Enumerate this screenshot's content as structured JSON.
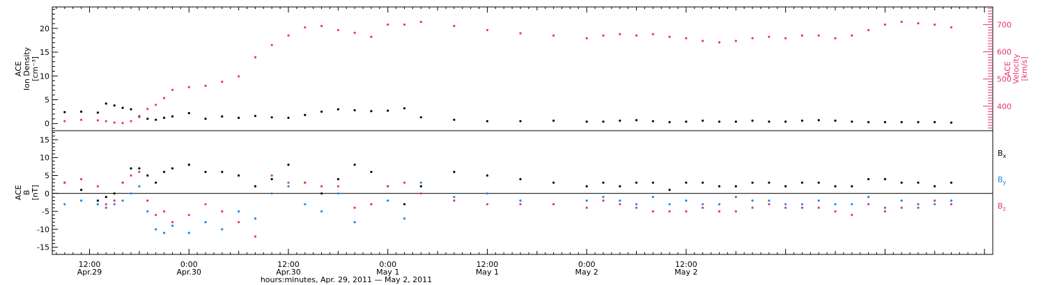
{
  "colors": {
    "axis": "#000000",
    "density": "#000000",
    "velocity": "#e8336b",
    "bx": "#000000",
    "by": "#1e88e5",
    "bz": "#e8336b"
  },
  "chart_data": [
    {
      "type": "scatter",
      "panel": "ion density / velocity",
      "ylabel_left": [
        "ACE",
        "Ion Density",
        "[cm⁻³]"
      ],
      "ylabel_right": [
        "ACE",
        "Velocity",
        "[km/s]"
      ],
      "ylim_left": [
        -1.5,
        24.5
      ],
      "ylim_right": [
        310,
        765
      ],
      "yticks_left": [
        "0",
        "5",
        "10",
        "15",
        "20"
      ],
      "yticks_right": [
        "400",
        "500",
        "600",
        "700"
      ],
      "series": [
        {
          "name": "Ion Density",
          "axis": "left",
          "x": [
            -3,
            -1,
            1,
            2,
            3,
            4,
            5,
            6,
            7,
            8,
            9,
            10,
            12,
            14,
            16,
            18,
            20,
            22,
            24,
            26,
            28,
            30,
            32,
            34,
            36,
            38,
            40,
            44,
            48,
            52,
            56,
            60,
            62,
            64,
            66,
            68,
            70,
            72,
            74,
            76,
            78,
            80,
            82,
            84,
            86,
            88,
            90,
            92,
            94,
            96,
            98,
            100,
            102,
            104
          ],
          "y": [
            2.4,
            2.5,
            2.3,
            4.2,
            3.8,
            3.3,
            3.0,
            1.5,
            1.0,
            0.8,
            1.2,
            1.5,
            2.2,
            1.0,
            1.5,
            1.2,
            1.6,
            1.3,
            1.2,
            1.8,
            2.5,
            3.0,
            2.8,
            2.6,
            2.7,
            3.2,
            1.3,
            0.8,
            0.5,
            0.5,
            0.6,
            0.4,
            0.4,
            0.6,
            0.7,
            0.5,
            0.3,
            0.4,
            0.6,
            0.4,
            0.4,
            0.6,
            0.4,
            0.4,
            0.6,
            0.7,
            0.6,
            0.4,
            0.3,
            0.3,
            0.3,
            0.3,
            0.3,
            0.2
          ]
        },
        {
          "name": "Velocity",
          "axis": "right",
          "x": [
            -3,
            -1,
            1,
            2,
            3,
            4,
            5,
            6,
            7,
            8,
            9,
            10,
            12,
            14,
            16,
            18,
            20,
            22,
            24,
            26,
            28,
            30,
            32,
            34,
            36,
            38,
            40,
            44,
            48,
            52,
            56,
            60,
            62,
            64,
            66,
            68,
            70,
            72,
            74,
            76,
            78,
            80,
            82,
            84,
            86,
            88,
            90,
            92,
            94,
            96,
            98,
            100,
            102,
            104
          ],
          "y": [
            345,
            350,
            348,
            345,
            340,
            338,
            345,
            360,
            390,
            405,
            430,
            460,
            470,
            475,
            490,
            510,
            580,
            625,
            660,
            690,
            695,
            680,
            670,
            655,
            700,
            700,
            710,
            695,
            680,
            668,
            660,
            650,
            660,
            665,
            660,
            665,
            655,
            650,
            640,
            635,
            640,
            650,
            655,
            650,
            660,
            660,
            650,
            660,
            680,
            700,
            710,
            705,
            700,
            690
          ]
        }
      ]
    },
    {
      "type": "scatter",
      "panel": "magnetic field",
      "ylabel_left": [
        "ACE",
        "B",
        "[nT]"
      ],
      "ylim": [
        -17,
        17.5
      ],
      "yticks": [
        "-15",
        "-10",
        "-5",
        "0",
        "5",
        "10",
        "15"
      ],
      "legend_position": "right",
      "series": [
        {
          "name": "Bx",
          "label_main": "B",
          "label_sub": "x",
          "x": [
            -3,
            -1,
            1,
            2,
            3,
            4,
            5,
            6,
            7,
            8,
            9,
            10,
            12,
            14,
            16,
            18,
            20,
            22,
            24,
            26,
            28,
            30,
            32,
            34,
            36,
            38,
            40,
            44,
            48,
            52,
            56,
            60,
            62,
            64,
            66,
            68,
            70,
            72,
            74,
            76,
            78,
            80,
            82,
            84,
            86,
            88,
            90,
            92,
            94,
            96,
            98,
            100,
            102,
            104
          ],
          "y": [
            3,
            1,
            -2,
            -1,
            0,
            3,
            7,
            7,
            5,
            3,
            6,
            7,
            8,
            6,
            6,
            5,
            2,
            4,
            8,
            3,
            0,
            4,
            8,
            6,
            2,
            -3,
            2,
            6,
            5,
            4,
            3,
            2,
            3,
            2,
            3,
            3,
            1,
            3,
            3,
            2,
            2,
            3,
            3,
            2,
            3,
            3,
            2,
            2,
            4,
            4,
            3,
            3,
            2,
            3
          ]
        },
        {
          "name": "By",
          "label_main": "B",
          "label_sub": "y",
          "x": [
            -3,
            -1,
            1,
            2,
            3,
            4,
            5,
            6,
            7,
            8,
            9,
            10,
            12,
            14,
            16,
            18,
            20,
            22,
            24,
            26,
            28,
            30,
            32,
            34,
            36,
            38,
            40,
            44,
            48,
            52,
            56,
            60,
            62,
            64,
            66,
            68,
            70,
            72,
            74,
            76,
            78,
            80,
            82,
            84,
            86,
            88,
            90,
            92,
            94,
            96,
            98,
            100,
            102,
            104
          ],
          "y": [
            -3,
            -2,
            -3,
            -4,
            -3,
            -2,
            0,
            2,
            -5,
            -10,
            -11,
            -9,
            -11,
            -8,
            -10,
            -5,
            -7,
            0,
            2,
            -3,
            -5,
            0,
            -8,
            -3,
            -2,
            -7,
            3,
            -1,
            0,
            -2,
            -3,
            -2,
            -1,
            -2,
            -3,
            -1,
            -3,
            -2,
            -3,
            -3,
            -1,
            -2,
            -2,
            -3,
            -3,
            -2,
            -3,
            -3,
            -1,
            -4,
            -2,
            -3,
            -3,
            -2
          ]
        },
        {
          "name": "Bz",
          "label_main": "B",
          "label_sub": "z",
          "x": [
            -3,
            -1,
            1,
            2,
            3,
            4,
            5,
            6,
            7,
            8,
            9,
            10,
            12,
            14,
            16,
            18,
            20,
            22,
            24,
            26,
            28,
            30,
            32,
            34,
            36,
            38,
            40,
            44,
            48,
            52,
            56,
            60,
            62,
            64,
            66,
            68,
            70,
            72,
            74,
            76,
            78,
            80,
            82,
            84,
            86,
            88,
            90,
            92,
            94,
            96,
            98,
            100,
            102,
            104
          ],
          "y": [
            3,
            4,
            2,
            -3,
            -2,
            3,
            5,
            6,
            -2,
            -6,
            -5,
            -8,
            -6,
            -3,
            -5,
            -8,
            -12,
            5,
            3,
            3,
            2,
            2,
            -4,
            -3,
            2,
            3,
            0,
            -2,
            -3,
            -3,
            -3,
            -4,
            -2,
            -3,
            -4,
            -5,
            -5,
            -5,
            -4,
            -5,
            -5,
            -4,
            -3,
            -4,
            -4,
            -4,
            -5,
            -6,
            -3,
            -5,
            -4,
            -4,
            -2,
            -3
          ]
        }
      ]
    }
  ],
  "x_axis": {
    "xlim": [
      -4.5,
      109
    ],
    "ticks": [
      {
        "hour": 0,
        "time": "12:00",
        "date": "Apr.29"
      },
      {
        "hour": 12,
        "time": "0:00",
        "date": "Apr.30"
      },
      {
        "hour": 24,
        "time": "12:00",
        "date": "Apr.30"
      },
      {
        "hour": 36,
        "time": "0:00",
        "date": "May 1"
      },
      {
        "hour": 48,
        "time": "12:00",
        "date": "May 1"
      },
      {
        "hour": 60,
        "time": "0:00",
        "date": "May 2"
      },
      {
        "hour": 72,
        "time": "12:00",
        "date": "May 2"
      }
    ],
    "xlabel": "hours:minutes, Apr. 29, 2011 — May  2, 2011"
  }
}
